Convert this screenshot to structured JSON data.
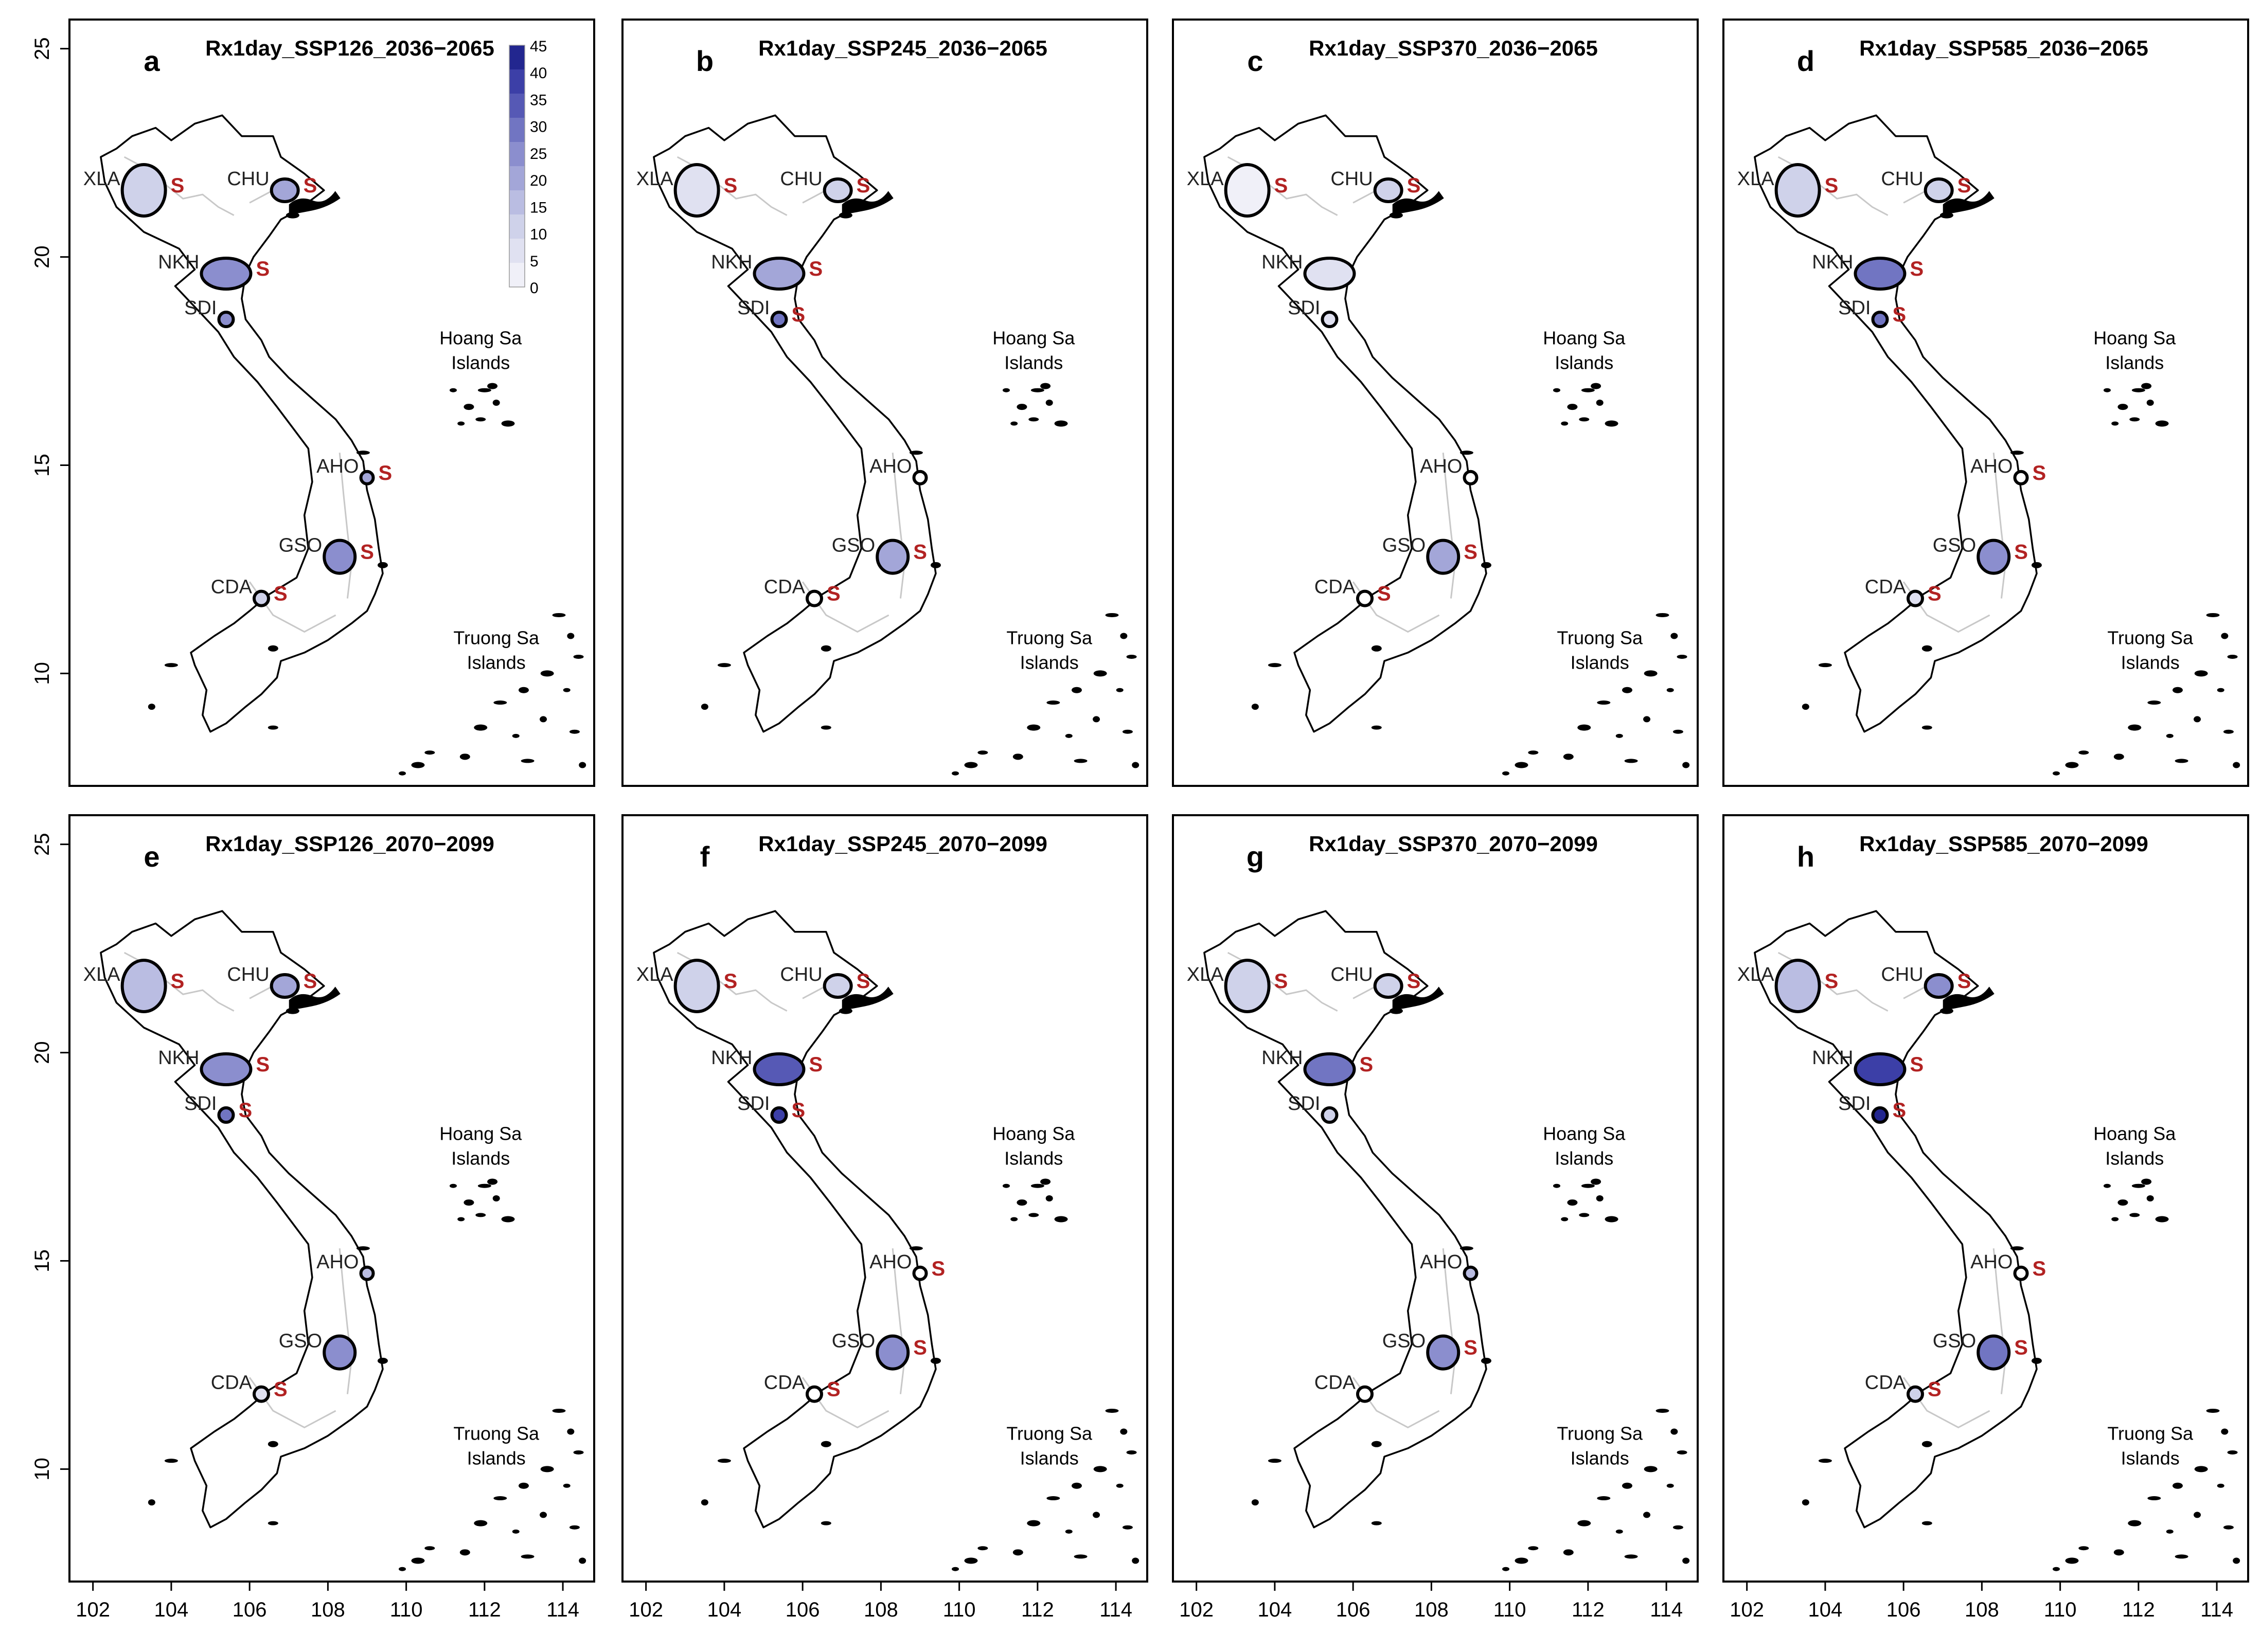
{
  "figure": {
    "y_axis": {
      "ticks": [
        10,
        15,
        20,
        25
      ]
    },
    "x_axis": {
      "ticks": [
        102,
        104,
        106,
        108,
        110,
        112,
        114
      ]
    },
    "extent": {
      "lon_min": 101.4,
      "lon_max": 114.8,
      "lat_min": 7.3,
      "lat_max": 25.7
    },
    "legend": {
      "ticks": [
        "45",
        "40",
        "35",
        "30",
        "25",
        "20",
        "15",
        "10",
        "5",
        "0"
      ],
      "colors": [
        "#f0f0f8",
        "#e0e1f1",
        "#cfd2ea",
        "#babde2",
        "#a3a6d8",
        "#8b8ece",
        "#7175c2",
        "#5659b5",
        "#3c3fa7",
        "#22268f"
      ]
    },
    "island_labels": {
      "hoang_sa_1": "Hoang Sa",
      "hoang_sa_2": "Islands",
      "truong_sa_1": "Truong Sa",
      "truong_sa_2": "Islands"
    },
    "sig_marker": "S",
    "colors": {
      "sig": "#b22222",
      "coast": "#000000",
      "river": "#c8c8c8"
    },
    "stations": [
      {
        "code": "XLA",
        "lon": 103.3,
        "lat": 21.6
      },
      {
        "code": "CHU",
        "lon": 106.9,
        "lat": 21.6
      },
      {
        "code": "NKH",
        "lon": 105.4,
        "lat": 19.6
      },
      {
        "code": "SDI",
        "lon": 105.4,
        "lat": 18.5
      },
      {
        "code": "AHO",
        "lon": 109.0,
        "lat": 14.7
      },
      {
        "code": "GSO",
        "lon": 108.3,
        "lat": 12.8
      },
      {
        "code": "CDA",
        "lon": 106.3,
        "lat": 11.8
      }
    ],
    "panels": [
      {
        "letter": "a",
        "title": "Rx1day_SSP126_2036−2065",
        "fill": {
          "XLA": "#cfd2ea",
          "CHU": "#a3a6d8",
          "NKH": "#8b8ece",
          "SDI": "#8b8ece",
          "AHO": "#a3a6d8",
          "GSO": "#8b8ece",
          "CDA": "#cfd2ea"
        },
        "show": [
          "XLA",
          "CHU",
          "NKH",
          "SDI",
          "AHO",
          "GSO",
          "CDA"
        ],
        "sig": [
          "XLA",
          "CHU",
          "NKH",
          "AHO",
          "GSO",
          "CDA"
        ]
      },
      {
        "letter": "b",
        "title": "Rx1day_SSP245_2036−2065",
        "fill": {
          "XLA": "#e0e1f1",
          "CHU": "#cfd2ea",
          "NKH": "#a3a6d8",
          "SDI": "#7175c2",
          "AHO": "#ffffff",
          "GSO": "#a3a6d8",
          "CDA": "#ffffff"
        },
        "show": [
          "XLA",
          "CHU",
          "NKH",
          "SDI",
          "AHO",
          "GSO",
          "CDA"
        ],
        "sig": [
          "XLA",
          "CHU",
          "NKH",
          "SDI",
          "GSO",
          "CDA"
        ]
      },
      {
        "letter": "c",
        "title": "Rx1day_SSP370_2036−2065",
        "fill": {
          "XLA": "#f0f0f8",
          "CHU": "#cfd2ea",
          "NKH": "#e0e1f1",
          "SDI": "#e0e1f1",
          "AHO": "#ffffff",
          "GSO": "#a3a6d8",
          "CDA": "#ffffff"
        },
        "show": [
          "XLA",
          "CHU",
          "NKH",
          "SDI",
          "AHO",
          "GSO",
          "CDA"
        ],
        "sig": [
          "XLA",
          "CHU",
          "GSO",
          "CDA"
        ]
      },
      {
        "letter": "d",
        "title": "Rx1day_SSP585_2036−2065",
        "fill": {
          "XLA": "#cfd2ea",
          "CHU": "#cfd2ea",
          "NKH": "#7175c2",
          "SDI": "#7175c2",
          "AHO": "#ffffff",
          "GSO": "#8b8ece",
          "CDA": "#e0e1f1"
        },
        "show": [
          "XLA",
          "CHU",
          "NKH",
          "SDI",
          "AHO",
          "GSO",
          "CDA"
        ],
        "sig": [
          "XLA",
          "CHU",
          "NKH",
          "SDI",
          "AHO",
          "GSO",
          "CDA"
        ]
      },
      {
        "letter": "e",
        "title": "Rx1day_SSP126_2070−2099",
        "fill": {
          "XLA": "#babde2",
          "CHU": "#a3a6d8",
          "NKH": "#8b8ece",
          "SDI": "#7175c2",
          "AHO": "#babde2",
          "GSO": "#8b8ece",
          "CDA": "#e0e1f1"
        },
        "show": [
          "XLA",
          "CHU",
          "NKH",
          "SDI",
          "AHO",
          "GSO",
          "CDA"
        ],
        "sig": [
          "XLA",
          "CHU",
          "NKH",
          "SDI",
          "CDA"
        ]
      },
      {
        "letter": "f",
        "title": "Rx1day_SSP245_2070−2099",
        "fill": {
          "XLA": "#cfd2ea",
          "CHU": "#cfd2ea",
          "NKH": "#5659b5",
          "SDI": "#3c3fa7",
          "AHO": "#ffffff",
          "GSO": "#8b8ece",
          "CDA": "#ffffff"
        },
        "show": [
          "XLA",
          "CHU",
          "NKH",
          "SDI",
          "AHO",
          "GSO",
          "CDA"
        ],
        "sig": [
          "XLA",
          "CHU",
          "NKH",
          "SDI",
          "AHO",
          "GSO",
          "CDA"
        ]
      },
      {
        "letter": "g",
        "title": "Rx1day_SSP370_2070−2099",
        "fill": {
          "XLA": "#cfd2ea",
          "CHU": "#cfd2ea",
          "NKH": "#7175c2",
          "SDI": "#cfd2ea",
          "AHO": "#babde2",
          "GSO": "#8b8ece",
          "CDA": "#ffffff"
        },
        "show": [
          "XLA",
          "CHU",
          "NKH",
          "SDI",
          "AHO",
          "GSO",
          "CDA"
        ],
        "sig": [
          "XLA",
          "CHU",
          "NKH",
          "GSO"
        ]
      },
      {
        "letter": "h",
        "title": "Rx1day_SSP585_2070−2099",
        "fill": {
          "XLA": "#babde2",
          "CHU": "#8b8ece",
          "NKH": "#3c3fa7",
          "SDI": "#22268f",
          "AHO": "#ffffff",
          "GSO": "#7175c2",
          "CDA": "#cfd2ea"
        },
        "show": [
          "XLA",
          "CHU",
          "NKH",
          "SDI",
          "AHO",
          "GSO",
          "CDA"
        ],
        "sig": [
          "XLA",
          "CHU",
          "NKH",
          "SDI",
          "AHO",
          "GSO",
          "CDA"
        ]
      }
    ]
  }
}
